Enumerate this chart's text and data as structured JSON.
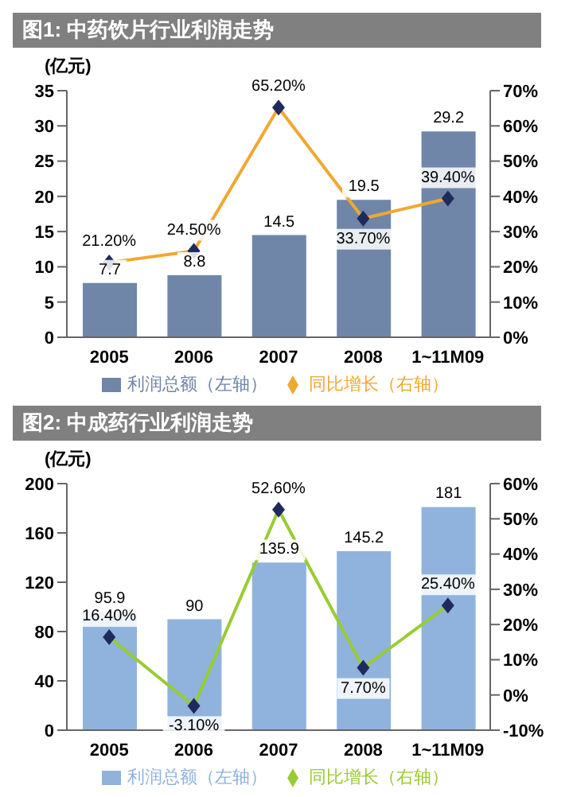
{
  "chart_data": [
    {
      "type": "bar",
      "title": "图1: 中药饮片行业利润走势",
      "ylabel": "(亿元)",
      "categories": [
        "2005",
        "2006",
        "2007",
        "2008",
        "1~11M09"
      ],
      "series": [
        {
          "name": "利润总额（左轴）",
          "type": "bar",
          "color": "#6f86a8",
          "values": [
            7.7,
            8.8,
            14.5,
            19.5,
            29.2
          ],
          "value_labels": [
            "7.7",
            "8.8",
            "14.5",
            "19.5",
            "29.2"
          ]
        },
        {
          "name": "同比增长（右轴）",
          "type": "line",
          "axis": "y2",
          "color": "#f0a830",
          "values": [
            21.2,
            24.5,
            65.2,
            33.7,
            39.4
          ],
          "value_labels": [
            "21.20%",
            "24.50%",
            "65.20%",
            "33.70%",
            "39.40%"
          ]
        }
      ],
      "ylim": [
        0,
        35
      ],
      "yticks": [
        0,
        5,
        10,
        15,
        20,
        25,
        30,
        35
      ],
      "y2lim": [
        0,
        70
      ],
      "y2ticks": [
        {
          "value": 0,
          "label": "0%"
        },
        {
          "value": 10,
          "label": "10%"
        },
        {
          "value": 20,
          "label": "20%"
        },
        {
          "value": 30,
          "label": "30%"
        },
        {
          "value": 40,
          "label": "40%"
        },
        {
          "value": 50,
          "label": "50%"
        },
        {
          "value": 60,
          "label": "60%"
        },
        {
          "value": 70,
          "label": "70%"
        }
      ],
      "grid": false,
      "legend": "bottom",
      "marker": "diamond"
    },
    {
      "type": "bar",
      "title": "图2: 中成药行业利润走势",
      "ylabel": "(亿元)",
      "categories": [
        "2005",
        "2006",
        "2007",
        "2008",
        "1~11M09"
      ],
      "series": [
        {
          "name": "利润总额（左轴）",
          "type": "bar",
          "color": "#8fb3dc",
          "values": [
            95.9,
            90,
            135.9,
            145.2,
            181
          ],
          "value_labels": [
            "95.9",
            "90",
            "135.9",
            "145.2",
            "181"
          ]
        },
        {
          "name": "同比增长（右轴）",
          "type": "line",
          "axis": "y2",
          "color": "#99cc33",
          "values": [
            16.4,
            -3.1,
            52.6,
            7.7,
            25.4
          ],
          "value_labels": [
            "16.40%",
            "-3.10%",
            "52.60%",
            "7.70%",
            "25.40%"
          ]
        }
      ],
      "ylim": [
        0,
        200
      ],
      "yticks": [
        0,
        40,
        80,
        120,
        160,
        200
      ],
      "y2lim": [
        -10,
        60
      ],
      "y2ticks": [
        {
          "value": -10,
          "label": "-10%"
        },
        {
          "value": 0,
          "label": "0%"
        },
        {
          "value": 10,
          "label": "10%"
        },
        {
          "value": 20,
          "label": "20%"
        },
        {
          "value": 30,
          "label": "30%"
        },
        {
          "value": 40,
          "label": "40%"
        },
        {
          "value": 50,
          "label": "50%"
        },
        {
          "value": 60,
          "label": "60%"
        }
      ],
      "grid": false,
      "legend": "bottom",
      "marker": "diamond"
    }
  ]
}
